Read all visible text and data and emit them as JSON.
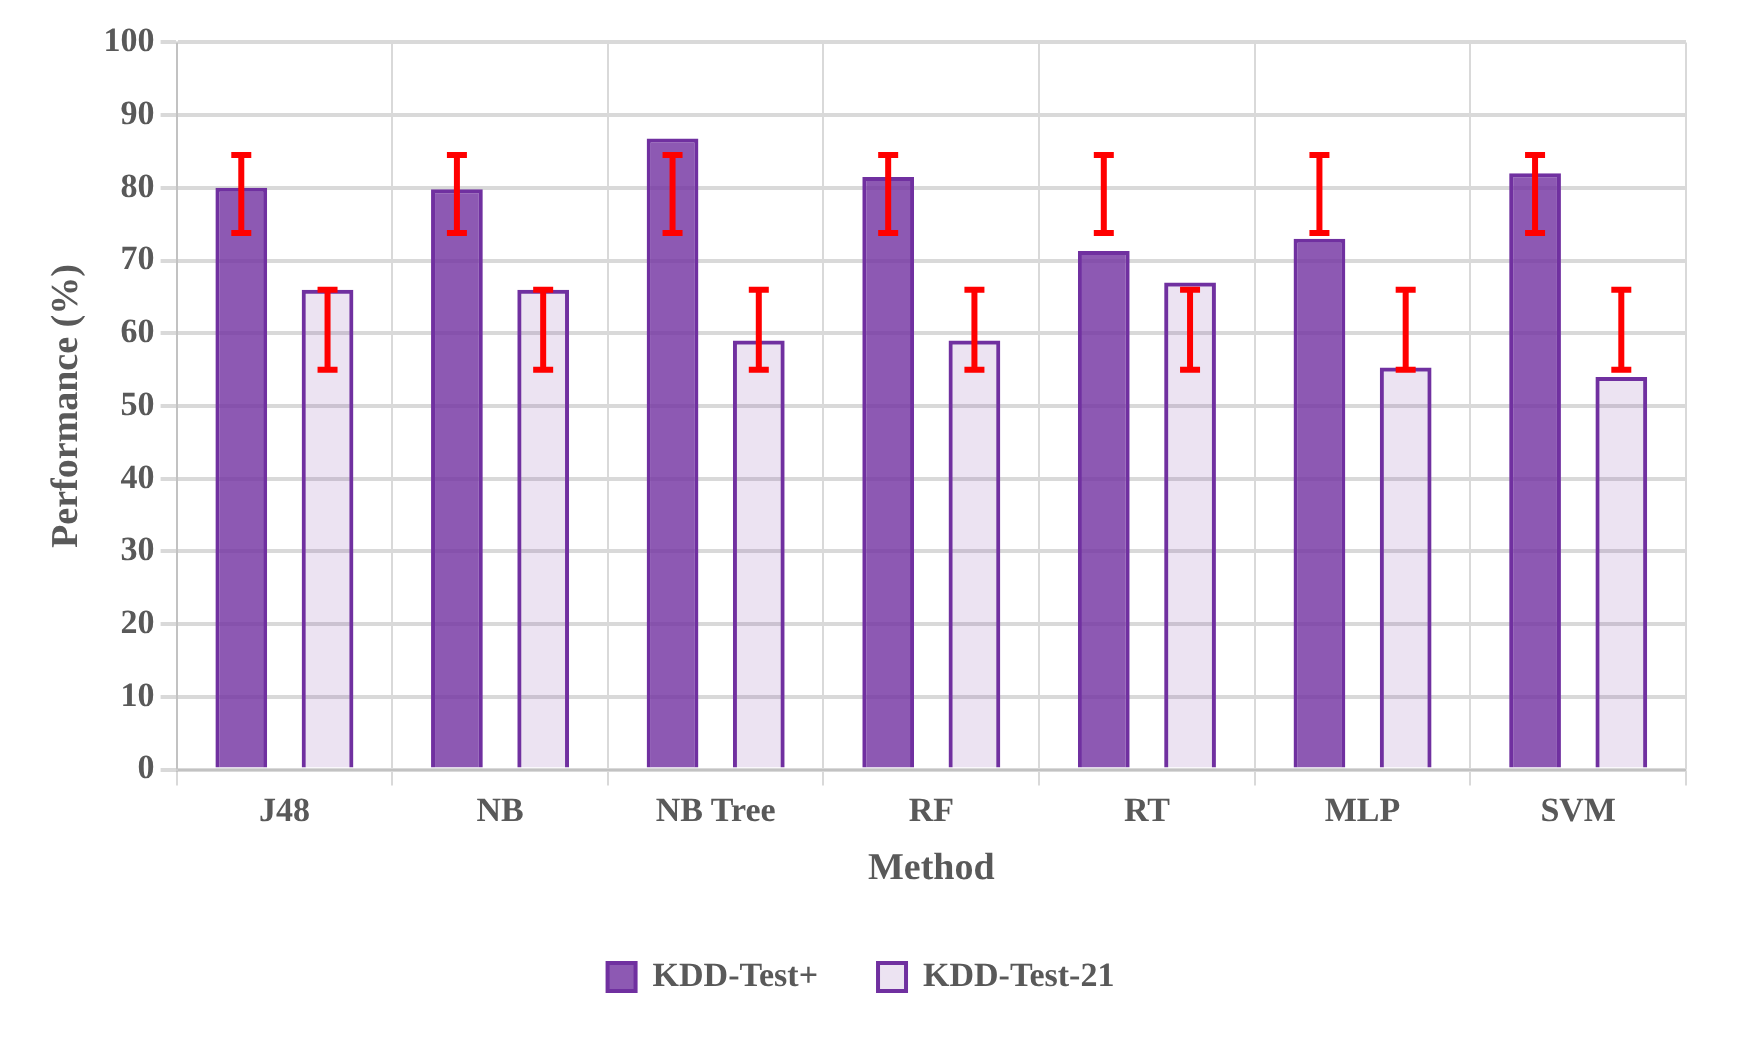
{
  "chart_data": {
    "type": "bar",
    "xlabel": "Method",
    "ylabel": "Performance (%)",
    "categories": [
      "J48",
      "NB",
      "NB Tree",
      "RF",
      "RT",
      "MLP",
      "SVM"
    ],
    "series": [
      {
        "name": "KDD-Test+",
        "color": "#7030a0",
        "values": [
          80,
          79.8,
          86.8,
          81.5,
          71.3,
          73,
          82
        ],
        "errors": [
          [
            73.8,
            84.5
          ],
          [
            73.8,
            84.5
          ],
          [
            73.8,
            84.5
          ],
          [
            73.8,
            84.5
          ],
          [
            73.8,
            84.5
          ],
          [
            73.8,
            84.5
          ],
          [
            73.8,
            84.5
          ]
        ]
      },
      {
        "name": "KDD-Test-21",
        "color": "#7030a0",
        "values": [
          66,
          66,
          59,
          59,
          67,
          55.3,
          54
        ],
        "errors": [
          [
            55,
            66
          ],
          [
            55,
            66
          ],
          [
            55,
            66
          ],
          [
            55,
            66
          ],
          [
            55,
            66
          ],
          [
            55,
            66
          ],
          [
            55,
            66
          ]
        ]
      }
    ],
    "ylim": [
      0,
      100
    ],
    "yticks": [
      0,
      10,
      20,
      30,
      40,
      50,
      60,
      70,
      80,
      90,
      100
    ],
    "grid": true,
    "legend": "bottom"
  }
}
